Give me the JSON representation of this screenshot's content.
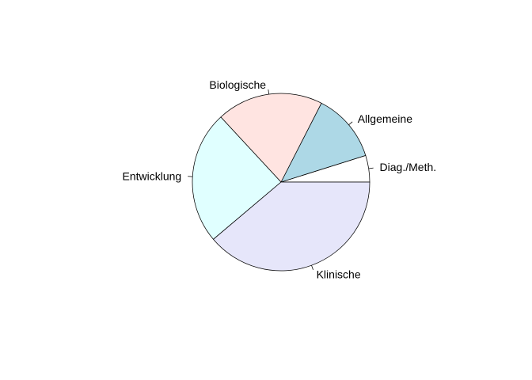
{
  "chart_data": {
    "type": "pie",
    "categories": [
      "Diag./Meth.",
      "Allgemeine",
      "Biologische",
      "Entwicklung",
      "Klinische"
    ],
    "values": [
      5,
      13,
      20,
      25,
      40
    ],
    "start_angle_deg": 0,
    "direction": "counterclockwise",
    "colors": [
      "#FFFFFF",
      "#ADD8E6",
      "#FFE4E1",
      "#E0FFFF",
      "#E6E6FA"
    ],
    "border_color": "#000000"
  }
}
